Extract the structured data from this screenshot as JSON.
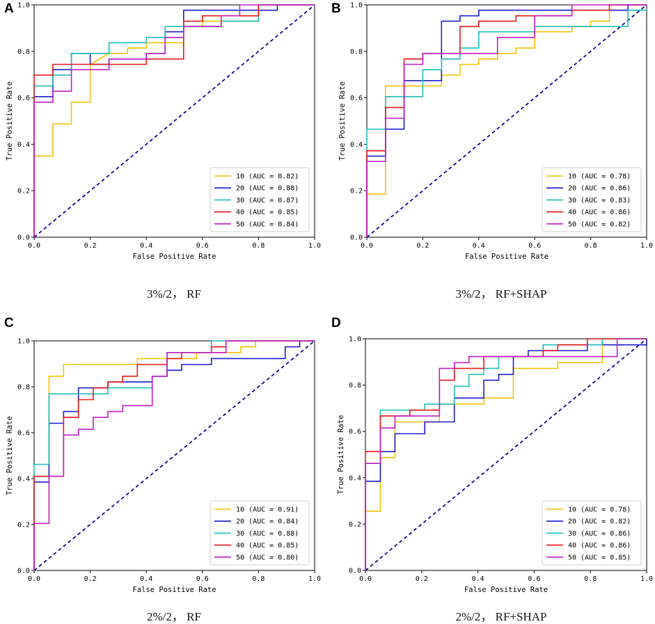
{
  "colors": {
    "10": "#f2c200",
    "20": "#1c1ccc",
    "30": "#1bbfb8",
    "40": "#e8161a",
    "50": "#c21cc4",
    "diag": "#0a0a8a"
  },
  "axes": {
    "xlabel": "False Positive Rate",
    "ylabel": "True Positive Rate",
    "ticks": [
      "0.0",
      "0.2",
      "0.4",
      "0.6",
      "0.8",
      "1.0"
    ]
  },
  "chart_data": [
    {
      "type": "line",
      "panel": "A",
      "caption": "3%/2， RF",
      "xlabel": "False Positive Rate",
      "ylabel": "True Positive Rate",
      "xlim": [
        0,
        1
      ],
      "ylim": [
        0,
        1
      ],
      "legend": "lower-right",
      "series": [
        {
          "name": "10",
          "label": "10 (AUC = 0.82)",
          "x": [
            0,
            0,
            0.067,
            0.067,
            0.133,
            0.133,
            0.2,
            0.2,
            0.267,
            0.333,
            0.333,
            0.4,
            0.4,
            0.533,
            0.533,
            0.6,
            0.6,
            0.8,
            0.8,
            1
          ],
          "y": [
            0,
            0.349,
            0.349,
            0.488,
            0.488,
            0.581,
            0.581,
            0.744,
            0.791,
            0.791,
            0.814,
            0.814,
            0.837,
            0.837,
            0.907,
            0.907,
            0.93,
            0.93,
            1,
            1
          ]
        },
        {
          "name": "20",
          "label": "20 (AUC = 0.88)",
          "x": [
            0,
            0,
            0.067,
            0.067,
            0.133,
            0.133,
            0.2,
            0.2,
            0.267,
            0.267,
            0.4,
            0.4,
            0.467,
            0.467,
            0.533,
            0.533,
            0.867,
            0.867,
            1
          ],
          "y": [
            0,
            0.605,
            0.605,
            0.721,
            0.721,
            0.791,
            0.791,
            0.744,
            0.744,
            0.767,
            0.767,
            0.791,
            0.791,
            0.884,
            0.884,
            0.977,
            0.977,
            1,
            1
          ]
        },
        {
          "name": "30",
          "label": "30 (AUC = 0.87)",
          "x": [
            0,
            0,
            0.067,
            0.067,
            0.133,
            0.133,
            0.267,
            0.267,
            0.4,
            0.4,
            0.467,
            0.467,
            0.533,
            0.533,
            0.667,
            0.667,
            0.8,
            0.8,
            1
          ],
          "y": [
            0,
            0.651,
            0.651,
            0.698,
            0.698,
            0.791,
            0.791,
            0.837,
            0.837,
            0.86,
            0.86,
            0.907,
            0.907,
            0.907,
            0.907,
            0.93,
            0.93,
            1,
            1
          ]
        },
        {
          "name": "40",
          "label": "40 (AUC = 0.85)",
          "x": [
            0,
            0,
            0.067,
            0.067,
            0.2,
            0.2,
            0.4,
            0.4,
            0.533,
            0.533,
            0.6,
            0.6,
            0.8,
            0.8,
            1
          ],
          "y": [
            0,
            0.698,
            0.698,
            0.744,
            0.744,
            0.744,
            0.744,
            0.767,
            0.767,
            0.93,
            0.93,
            0.953,
            0.953,
            1,
            1
          ]
        },
        {
          "name": "50",
          "label": "50 (AUC = 0.84)",
          "x": [
            0,
            0,
            0.067,
            0.067,
            0.133,
            0.133,
            0.2,
            0.2,
            0.267,
            0.267,
            0.4,
            0.4,
            0.467,
            0.467,
            0.533,
            0.533,
            0.667,
            0.667,
            0.733,
            0.733,
            1
          ],
          "y": [
            0,
            0.581,
            0.581,
            0.628,
            0.628,
            0.721,
            0.721,
            0.721,
            0.721,
            0.767,
            0.767,
            0.791,
            0.791,
            0.86,
            0.86,
            0.907,
            0.907,
            0.953,
            0.953,
            1,
            1
          ]
        }
      ]
    },
    {
      "type": "line",
      "panel": "B",
      "caption": "3%/2， RF+SHAP",
      "xlabel": "False Positive Rate",
      "ylabel": "True Positive Rate",
      "xlim": [
        0,
        1
      ],
      "ylim": [
        0,
        1
      ],
      "legend": "lower-right",
      "series": [
        {
          "name": "10",
          "label": "10 (AUC = 0.78)",
          "x": [
            0,
            0,
            0.067,
            0.067,
            0.2,
            0.2,
            0.267,
            0.267,
            0.333,
            0.333,
            0.4,
            0.4,
            0.467,
            0.467,
            0.533,
            0.533,
            0.6,
            0.6,
            0.733,
            0.733,
            0.8,
            0.8,
            0.867,
            0.867,
            1
          ],
          "y": [
            0,
            0.186,
            0.186,
            0.651,
            0.651,
            0.651,
            0.651,
            0.698,
            0.698,
            0.744,
            0.744,
            0.767,
            0.767,
            0.791,
            0.791,
            0.814,
            0.814,
            0.884,
            0.884,
            0.907,
            0.907,
            0.93,
            0.93,
            1,
            1
          ]
        },
        {
          "name": "20",
          "label": "20 (AUC = 0.86)",
          "x": [
            0,
            0,
            0.067,
            0.067,
            0.133,
            0.133,
            0.2,
            0.2,
            0.267,
            0.267,
            0.333,
            0.333,
            0.4,
            0.4,
            0.933,
            0.933,
            1
          ],
          "y": [
            0,
            0.349,
            0.349,
            0.465,
            0.465,
            0.674,
            0.674,
            0.674,
            0.674,
            0.93,
            0.93,
            0.953,
            0.953,
            0.977,
            0.977,
            1,
            1
          ]
        },
        {
          "name": "30",
          "label": "30 (AUC = 0.83)",
          "x": [
            0,
            0,
            0.067,
            0.067,
            0.2,
            0.2,
            0.267,
            0.267,
            0.333,
            0.333,
            0.4,
            0.4,
            0.6,
            0.6,
            0.933,
            0.933,
            1
          ],
          "y": [
            0,
            0.465,
            0.465,
            0.605,
            0.605,
            0.721,
            0.721,
            0.767,
            0.767,
            0.814,
            0.814,
            0.884,
            0.884,
            0.907,
            0.907,
            0.977,
            0.977
          ]
        },
        {
          "name": "40",
          "label": "40 (AUC = 0.86)",
          "x": [
            0,
            0,
            0.067,
            0.067,
            0.133,
            0.133,
            0.2,
            0.2,
            0.333,
            0.333,
            0.4,
            0.4,
            0.533,
            0.533,
            0.733,
            0.733,
            0.867,
            0.867,
            1
          ],
          "y": [
            0,
            0.372,
            0.372,
            0.558,
            0.558,
            0.767,
            0.767,
            0.791,
            0.791,
            0.907,
            0.907,
            0.93,
            0.93,
            0.953,
            0.953,
            0.977,
            0.977,
            1,
            1
          ]
        },
        {
          "name": "50",
          "label": "50 (AUC = 0.82)",
          "x": [
            0,
            0,
            0.067,
            0.067,
            0.133,
            0.133,
            0.2,
            0.2,
            0.467,
            0.467,
            0.6,
            0.6,
            0.733,
            0.733,
            1
          ],
          "y": [
            0,
            0.326,
            0.326,
            0.512,
            0.512,
            0.744,
            0.744,
            0.791,
            0.791,
            0.86,
            0.86,
            0.953,
            0.953,
            1,
            1
          ]
        }
      ]
    },
    {
      "type": "line",
      "panel": "C",
      "caption": "2%/2， RF",
      "xlabel": "False Positive Rate",
      "ylabel": "True Positive Rate",
      "xlim": [
        0,
        1
      ],
      "ylim": [
        0,
        1
      ],
      "legend": "lower-right",
      "series": [
        {
          "name": "10",
          "label": "10 (AUC = 0.91)",
          "x": [
            0,
            0,
            0.053,
            0.053,
            0.105,
            0.105,
            0.368,
            0.368,
            0.579,
            0.579,
            0.737,
            0.737,
            0.789,
            0.789,
            1
          ],
          "y": [
            0,
            0.41,
            0.41,
            0.846,
            0.846,
            0.897,
            0.897,
            0.923,
            0.923,
            0.949,
            0.949,
            0.974,
            0.974,
            1,
            1
          ]
        },
        {
          "name": "20",
          "label": "20 (AUC = 0.84)",
          "x": [
            0,
            0,
            0.053,
            0.053,
            0.105,
            0.105,
            0.158,
            0.158,
            0.263,
            0.263,
            0.421,
            0.421,
            0.474,
            0.474,
            0.526,
            0.526,
            0.632,
            0.632,
            0.895,
            0.895,
            0.947,
            0.947,
            1
          ],
          "y": [
            0,
            0.385,
            0.385,
            0.641,
            0.641,
            0.692,
            0.692,
            0.795,
            0.795,
            0.821,
            0.821,
            0.846,
            0.846,
            0.872,
            0.872,
            0.897,
            0.897,
            0.923,
            0.923,
            0.974,
            0.974,
            1,
            1
          ]
        },
        {
          "name": "30",
          "label": "30 (AUC = 0.88)",
          "x": [
            0,
            0,
            0.053,
            0.053,
            0.211,
            0.211,
            0.263,
            0.263,
            0.421,
            0.421,
            0.474,
            0.474,
            0.632,
            0.632,
            1
          ],
          "y": [
            0,
            0.462,
            0.462,
            0.769,
            0.769,
            0.769,
            0.769,
            0.795,
            0.795,
            0.846,
            0.846,
            0.949,
            0.949,
            1,
            1
          ]
        },
        {
          "name": "40",
          "label": "40 (AUC = 0.85)",
          "x": [
            0,
            0,
            0.105,
            0.105,
            0.158,
            0.158,
            0.211,
            0.211,
            0.263,
            0.263,
            0.316,
            0.316,
            0.368,
            0.368,
            0.474,
            0.474,
            0.526,
            0.526,
            0.632,
            0.632,
            0.684,
            0.684,
            1
          ],
          "y": [
            0,
            0.41,
            0.41,
            0.667,
            0.667,
            0.744,
            0.744,
            0.795,
            0.795,
            0.821,
            0.821,
            0.846,
            0.846,
            0.897,
            0.897,
            0.923,
            0.923,
            0.949,
            0.949,
            0.974,
            0.974,
            1,
            1
          ]
        },
        {
          "name": "50",
          "label": "50 (AUC = 0.80)",
          "x": [
            0,
            0,
            0.053,
            0.053,
            0.105,
            0.105,
            0.158,
            0.158,
            0.211,
            0.211,
            0.263,
            0.263,
            0.316,
            0.316,
            0.368,
            0.368,
            0.421,
            0.421,
            0.474,
            0.474,
            0.684,
            0.684,
            1
          ],
          "y": [
            0,
            0.205,
            0.205,
            0.41,
            0.41,
            0.59,
            0.59,
            0.615,
            0.615,
            0.667,
            0.667,
            0.692,
            0.692,
            0.718,
            0.718,
            0.718,
            0.718,
            0.846,
            0.846,
            0.949,
            0.949,
            1,
            1
          ]
        }
      ]
    },
    {
      "type": "line",
      "panel": "D",
      "caption": "2%/2， RF+SHAP",
      "xlabel": "False Positive Rate",
      "ylabel": "True Positive Rate",
      "xlim": [
        0,
        1
      ],
      "ylim": [
        0,
        1
      ],
      "legend": "lower-right",
      "series": [
        {
          "name": "10",
          "label": "10 (AUC = 0.78)",
          "x": [
            0,
            0,
            0.053,
            0.053,
            0.105,
            0.105,
            0.263,
            0.263,
            0.421,
            0.421,
            0.526,
            0.526,
            0.684,
            0.684,
            0.842,
            0.842,
            1
          ],
          "y": [
            0,
            0.256,
            0.256,
            0.487,
            0.487,
            0.641,
            0.641,
            0.718,
            0.718,
            0.744,
            0.744,
            0.872,
            0.872,
            0.897,
            0.897,
            1,
            1
          ]
        },
        {
          "name": "20",
          "label": "20 (AUC = 0.82)",
          "x": [
            0,
            0,
            0.053,
            0.053,
            0.105,
            0.105,
            0.211,
            0.211,
            0.316,
            0.316,
            0.421,
            0.421,
            0.474,
            0.474,
            0.526,
            0.526,
            0.579,
            0.579,
            0.789,
            0.789,
            1,
            1
          ],
          "y": [
            0,
            0.385,
            0.385,
            0.513,
            0.513,
            0.59,
            0.59,
            0.641,
            0.641,
            0.744,
            0.744,
            0.821,
            0.821,
            0.846,
            0.846,
            0.923,
            0.923,
            0.949,
            0.949,
            0.974,
            0.974,
            1
          ]
        },
        {
          "name": "30",
          "label": "30 (AUC = 0.86)",
          "x": [
            0,
            0,
            0.053,
            0.053,
            0.211,
            0.211,
            0.316,
            0.316,
            0.368,
            0.368,
            0.421,
            0.421,
            0.474,
            0.474,
            0.632,
            0.632,
            0.842,
            0.842,
            1
          ],
          "y": [
            0,
            0.462,
            0.462,
            0.692,
            0.692,
            0.718,
            0.718,
            0.795,
            0.795,
            0.846,
            0.846,
            0.872,
            0.872,
            0.923,
            0.923,
            0.974,
            0.974,
            1,
            1
          ]
        },
        {
          "name": "40",
          "label": "40 (AUC = 0.86)",
          "x": [
            0,
            0,
            0.053,
            0.053,
            0.158,
            0.158,
            0.263,
            0.263,
            0.316,
            0.316,
            0.421,
            0.421,
            0.632,
            0.632,
            0.684,
            0.684,
            0.789,
            0.789,
            1
          ],
          "y": [
            0,
            0.513,
            0.513,
            0.667,
            0.667,
            0.692,
            0.692,
            0.821,
            0.821,
            0.872,
            0.872,
            0.923,
            0.923,
            0.949,
            0.949,
            0.974,
            0.974,
            1,
            1
          ]
        },
        {
          "name": "50",
          "label": "50 (AUC = 0.85)",
          "x": [
            0,
            0,
            0.053,
            0.053,
            0.105,
            0.105,
            0.263,
            0.263,
            0.316,
            0.316,
            0.368,
            0.368,
            0.421,
            0.421,
            0.895,
            0.895,
            1
          ],
          "y": [
            0,
            0.462,
            0.462,
            0.615,
            0.615,
            0.667,
            0.667,
            0.872,
            0.872,
            0.897,
            0.897,
            0.923,
            0.923,
            0.923,
            0.923,
            1,
            1
          ]
        }
      ]
    }
  ]
}
